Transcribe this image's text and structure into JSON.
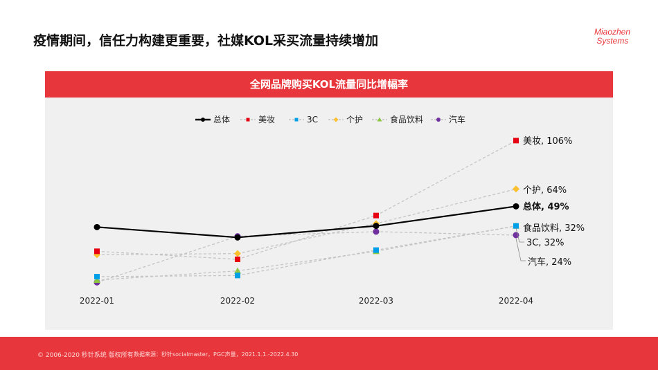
{
  "slide_title": "疫情期间，信任力构建更重要，社媒KOL采买流量持续增加",
  "logo_text": "Miaozhen Systems",
  "footer": {
    "copyright": "© 2006-2020 秒针系统 版权所有",
    "source": "数据来源：秒针socialmaster，PGC声量，2021.1.1.-2022.4.30"
  },
  "chart_data": {
    "type": "line",
    "title": "全网品牌购买KOL流量同比增幅率",
    "categories": [
      "2022-01",
      "2022-02",
      "2022-03",
      "2022-04"
    ],
    "legend_position": "top",
    "grid": false,
    "series": [
      {
        "name": "总体",
        "values": [
          31,
          22,
          32,
          49
        ],
        "color": "#000000",
        "marker": "circle",
        "style": "solid",
        "end_label": "总体, 49%"
      },
      {
        "name": "美妆",
        "values": [
          10,
          3,
          41,
          106
        ],
        "color": "#e60012",
        "marker": "square",
        "style": "dashed",
        "end_label": "美妆, 106%"
      },
      {
        "name": "3C",
        "values": [
          -12,
          -11,
          11,
          32
        ],
        "color": "#00a0e9",
        "marker": "square",
        "style": "dashed",
        "end_label": "3C, 32%"
      },
      {
        "name": "个护",
        "values": [
          7,
          8,
          34,
          64
        ],
        "color": "#fbc02d",
        "marker": "diamond",
        "style": "dashed",
        "end_label": "个护, 64%"
      },
      {
        "name": "食品饮料",
        "values": [
          -15,
          -7,
          10,
          32
        ],
        "color": "#8dc63f",
        "marker": "triangle",
        "style": "dashed",
        "end_label": "食品饮料, 32%"
      },
      {
        "name": "汽车",
        "values": [
          -17,
          23,
          27,
          24
        ],
        "color": "#7030a0",
        "marker": "circle",
        "style": "dashed",
        "end_label": "汽车, 24%"
      }
    ]
  }
}
